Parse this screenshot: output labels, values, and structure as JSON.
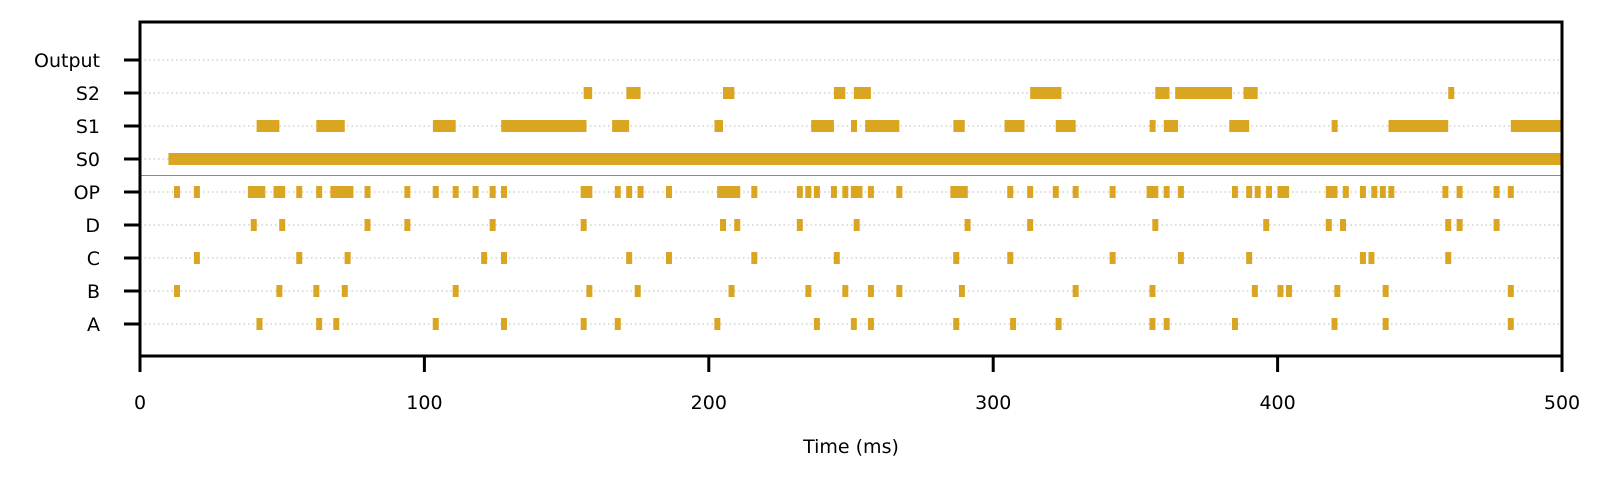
{
  "chart_data": {
    "type": "raster",
    "xlabel": "Time (ms)",
    "xlim": [
      0,
      500
    ],
    "xticks": [
      0,
      100,
      200,
      300,
      400,
      500
    ],
    "rows": [
      "A",
      "B",
      "C",
      "D",
      "OP",
      "S0",
      "S1",
      "S2",
      "Output"
    ],
    "grid": "dotted horizontal",
    "color": "#DAA520",
    "divider_color": "#9080B0",
    "events": {
      "A": [
        42,
        63,
        69,
        104,
        128,
        156,
        168,
        203,
        238,
        251,
        257,
        287,
        307,
        323,
        356,
        361,
        385,
        420,
        438,
        482
      ],
      "B": [
        13,
        49,
        62,
        72,
        111,
        158,
        175,
        208,
        235,
        248,
        257,
        267,
        289,
        329,
        356,
        392,
        401,
        404,
        421,
        438,
        482
      ],
      "C": [
        20,
        56,
        73,
        121,
        128,
        172,
        186,
        216,
        245,
        287,
        306,
        342,
        366,
        390,
        430,
        433,
        460
      ],
      "D": [
        40,
        50,
        80,
        94,
        124,
        156,
        205,
        210,
        232,
        252,
        291,
        313,
        357,
        396,
        418,
        423,
        460,
        464,
        477
      ],
      "OP": [
        13,
        20,
        39,
        41,
        43,
        48,
        50,
        56,
        63,
        68,
        70,
        72,
        74,
        80,
        94,
        104,
        111,
        118,
        124,
        128,
        156,
        158,
        168,
        172,
        176,
        186,
        204,
        206,
        208,
        210,
        216,
        232,
        235,
        238,
        244,
        248,
        251,
        253,
        257,
        267,
        286,
        288,
        290,
        306,
        313,
        322,
        329,
        342,
        355,
        357,
        361,
        366,
        385,
        390,
        393,
        397,
        401,
        403,
        418,
        420,
        424,
        430,
        434,
        437,
        440,
        459,
        464,
        477,
        482
      ],
      "OUTPUT": []
    },
    "intervals": {
      "S0": [
        [
          10,
          500
        ]
      ],
      "S1": [
        [
          41,
          49
        ],
        [
          62,
          72
        ],
        [
          103,
          111
        ],
        [
          127,
          157
        ],
        [
          166,
          172
        ],
        [
          202,
          205
        ],
        [
          236,
          244
        ],
        [
          250,
          252
        ],
        [
          255,
          267
        ],
        [
          286,
          290
        ],
        [
          304,
          311
        ],
        [
          322,
          329
        ],
        [
          355,
          357
        ],
        [
          360,
          365
        ],
        [
          383,
          390
        ],
        [
          419,
          421
        ],
        [
          439,
          460
        ],
        [
          482,
          500
        ]
      ],
      "S2": [
        [
          156,
          159
        ],
        [
          171,
          176
        ],
        [
          205,
          209
        ],
        [
          244,
          248
        ],
        [
          251,
          257
        ],
        [
          313,
          324
        ],
        [
          357,
          362
        ],
        [
          364,
          384
        ],
        [
          388,
          393
        ],
        [
          460,
          462
        ]
      ]
    }
  }
}
